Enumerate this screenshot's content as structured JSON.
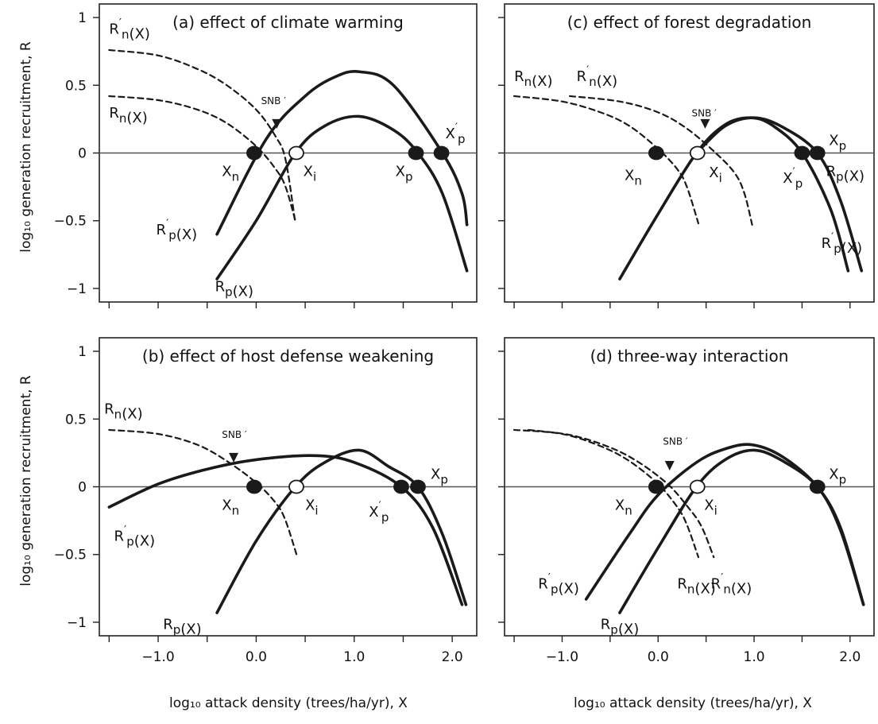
{
  "chart_data": {
    "type": "line",
    "xlabel": "log₁₀ attack density (trees/ha/yr), X",
    "ylabel": "log₁₀ generation recruitment, R",
    "x_ticks": [
      -1.0,
      0.0,
      1.0,
      2.0
    ],
    "x_tick_labels": [
      "−1.0",
      "0.0",
      "1.0",
      "2.0"
    ],
    "y_ticks": [
      1,
      0.5,
      0,
      -0.5,
      -1
    ],
    "y_tick_labels": [
      "1",
      "0.5",
      "0",
      "−0.5",
      "−1"
    ],
    "xlim": [
      -1.6,
      2.25
    ],
    "ylim": [
      -1.1,
      1.1
    ],
    "panels": [
      {
        "id": "a",
        "title": "(a) effect of climate warming",
        "series": [
          {
            "name": "R′n(X)",
            "style": "dashed",
            "points": [
              [
                -1.5,
                0.76
              ],
              [
                -1.0,
                0.72
              ],
              [
                -0.6,
                0.62
              ],
              [
                -0.3,
                0.5
              ],
              [
                0,
                0.32
              ],
              [
                0.2,
                0.12
              ],
              [
                0.3,
                -0.05
              ],
              [
                0.4,
                -0.52
              ]
            ]
          },
          {
            "name": "Rn(X)",
            "style": "dashed",
            "points": [
              [
                -1.5,
                0.42
              ],
              [
                -1.0,
                0.39
              ],
              [
                -0.6,
                0.32
              ],
              [
                -0.3,
                0.22
              ],
              [
                0,
                0.05
              ],
              [
                0.2,
                -0.12
              ],
              [
                0.3,
                -0.25
              ],
              [
                0.4,
                -0.5
              ]
            ]
          },
          {
            "name": "R′p(X)",
            "style": "solid",
            "points": [
              [
                -0.4,
                -0.6
              ],
              [
                0.1,
                0.1
              ],
              [
                0.5,
                0.42
              ],
              [
                0.8,
                0.56
              ],
              [
                1.05,
                0.6
              ],
              [
                1.4,
                0.5
              ],
              [
                1.9,
                0.0
              ],
              [
                2.1,
                -0.3
              ],
              [
                2.15,
                -0.53
              ]
            ]
          },
          {
            "name": "Rp(X)",
            "style": "solid",
            "points": [
              [
                -0.4,
                -0.93
              ],
              [
                0,
                -0.5
              ],
              [
                0.4,
                0.0
              ],
              [
                0.7,
                0.2
              ],
              [
                1.05,
                0.27
              ],
              [
                1.4,
                0.17
              ],
              [
                1.65,
                0.0
              ],
              [
                1.9,
                -0.3
              ],
              [
                2.15,
                -0.87
              ]
            ]
          }
        ],
        "labels": {
          "Rn_prime": "R′n(X)",
          "Rn": "Rn(X)",
          "Rp_prime": "R′p(X)",
          "Rp": "Rp(X)",
          "Xn": "Xn",
          "Xi": "Xi",
          "Xp": "Xp",
          "Xp_prime": "X′p",
          "snb": "SNB ′"
        },
        "points": [
          {
            "label": "Xn",
            "x": -0.02,
            "y": 0,
            "filled": true
          },
          {
            "label": "Xi",
            "x": 0.41,
            "y": 0,
            "filled": false
          },
          {
            "label": "Xp",
            "x": 1.63,
            "y": 0,
            "filled": true
          },
          {
            "label": "X′p",
            "x": 1.89,
            "y": 0,
            "filled": true
          }
        ],
        "snb_x": 0.21,
        "snb_y": 0.18
      },
      {
        "id": "c",
        "title": "(c) effect of forest degradation",
        "series": [
          {
            "name": "Rn(X)",
            "style": "dashed",
            "points": [
              [
                -1.5,
                0.42
              ],
              [
                -1.0,
                0.38
              ],
              [
                -0.6,
                0.3
              ],
              [
                -0.3,
                0.2
              ],
              [
                0,
                0.03
              ],
              [
                0.2,
                -0.12
              ],
              [
                0.3,
                -0.25
              ],
              [
                0.42,
                -0.52
              ]
            ]
          },
          {
            "name": "R′n(X)",
            "style": "dashed",
            "points": [
              [
                -0.92,
                0.42
              ],
              [
                -0.4,
                0.38
              ],
              [
                0,
                0.3
              ],
              [
                0.3,
                0.18
              ],
              [
                0.6,
                0.0
              ],
              [
                0.8,
                -0.15
              ],
              [
                0.9,
                -0.3
              ],
              [
                0.98,
                -0.53
              ]
            ]
          },
          {
            "name": "R′p(X)",
            "style": "solid",
            "points": [
              [
                -0.4,
                -0.93
              ],
              [
                0,
                -0.45
              ],
              [
                0.4,
                0.0
              ],
              [
                0.7,
                0.21
              ],
              [
                0.97,
                0.26
              ],
              [
                1.2,
                0.2
              ],
              [
                1.5,
                0.0
              ],
              [
                1.8,
                -0.42
              ],
              [
                1.98,
                -0.87
              ]
            ]
          },
          {
            "name": "Rp(X)",
            "style": "solid",
            "points": [
              [
                0.4,
                0.0
              ],
              [
                0.7,
                0.2
              ],
              [
                1.0,
                0.26
              ],
              [
                1.3,
                0.19
              ],
              [
                1.66,
                0.0
              ],
              [
                1.9,
                -0.35
              ],
              [
                2.12,
                -0.87
              ]
            ]
          }
        ],
        "labels": {
          "Rn": "Rn(X)",
          "Rn_prime": "R′n(X)",
          "Rp_prime": "R′p(X)",
          "Rp": "Rp(X)",
          "Xn": "Xn",
          "Xi": "Xi",
          "Xp": "Xp",
          "Xp_prime": "X′p",
          "snb": "SNB ′"
        },
        "points": [
          {
            "label": "Xn",
            "x": -0.02,
            "y": 0,
            "filled": true
          },
          {
            "label": "Xi",
            "x": 0.41,
            "y": 0,
            "filled": false
          },
          {
            "label": "X′p",
            "x": 1.5,
            "y": 0,
            "filled": true
          },
          {
            "label": "Xp",
            "x": 1.66,
            "y": 0,
            "filled": true
          }
        ],
        "snb_x": 0.49,
        "snb_y": 0.18
      },
      {
        "id": "b",
        "title": "(b) effect of host defense weakening",
        "series": [
          {
            "name": "Rn(X)",
            "style": "dashed",
            "points": [
              [
                -1.5,
                0.42
              ],
              [
                -1.0,
                0.39
              ],
              [
                -0.6,
                0.31
              ],
              [
                -0.3,
                0.19
              ],
              [
                0,
                0.03
              ],
              [
                0.2,
                -0.12
              ],
              [
                0.3,
                -0.25
              ],
              [
                0.42,
                -0.52
              ]
            ]
          },
          {
            "name": "R′p(X)",
            "style": "solid",
            "points": [
              [
                -1.5,
                -0.15
              ],
              [
                -1.0,
                0.02
              ],
              [
                -0.5,
                0.13
              ],
              [
                0,
                0.2
              ],
              [
                0.6,
                0.23
              ],
              [
                1.0,
                0.18
              ],
              [
                1.48,
                0.0
              ],
              [
                1.8,
                -0.3
              ],
              [
                2.1,
                -0.87
              ]
            ]
          },
          {
            "name": "Rp(X)",
            "style": "solid",
            "points": [
              [
                -0.4,
                -0.93
              ],
              [
                0,
                -0.4
              ],
              [
                0.4,
                0.0
              ],
              [
                0.7,
                0.18
              ],
              [
                1.05,
                0.27
              ],
              [
                1.35,
                0.15
              ],
              [
                1.65,
                0.0
              ],
              [
                1.9,
                -0.35
              ],
              [
                2.14,
                -0.87
              ]
            ]
          }
        ],
        "labels": {
          "Rn": "Rn(X)",
          "Rp_prime": "R′p(X)",
          "Rp": "Rp(X)",
          "Xn": "Xn",
          "Xi": "Xi",
          "Xp": "Xp",
          "Xp_prime": "X′p",
          "snb": "SNB ′"
        },
        "points": [
          {
            "label": "Xn",
            "x": -0.02,
            "y": 0,
            "filled": true
          },
          {
            "label": "Xi",
            "x": 0.41,
            "y": 0,
            "filled": false
          },
          {
            "label": "X′p",
            "x": 1.48,
            "y": 0,
            "filled": true
          },
          {
            "label": "Xp",
            "x": 1.65,
            "y": 0,
            "filled": true
          }
        ],
        "snb_x": -0.23,
        "snb_y": 0.18
      },
      {
        "id": "d",
        "title": "(d) three-way interaction",
        "series": [
          {
            "name": "Rn(X)",
            "style": "dashed",
            "points": [
              [
                -1.5,
                0.42
              ],
              [
                -1.0,
                0.39
              ],
              [
                -0.6,
                0.3
              ],
              [
                -0.3,
                0.19
              ],
              [
                0,
                0.02
              ],
              [
                0.2,
                -0.15
              ],
              [
                0.3,
                -0.28
              ],
              [
                0.42,
                -0.52
              ]
            ]
          },
          {
            "name": "R′n(X)",
            "style": "dashed",
            "points": [
              [
                -1.35,
                0.42
              ],
              [
                -0.9,
                0.38
              ],
              [
                -0.5,
                0.29
              ],
              [
                -0.2,
                0.18
              ],
              [
                0.1,
                0.02
              ],
              [
                0.3,
                -0.14
              ],
              [
                0.45,
                -0.29
              ],
              [
                0.58,
                -0.52
              ]
            ]
          },
          {
            "name": "R′p(X)",
            "style": "solid",
            "points": [
              [
                -0.75,
                -0.83
              ],
              [
                -0.3,
                -0.35
              ],
              [
                0,
                -0.06
              ],
              [
                0.4,
                0.18
              ],
              [
                0.7,
                0.28
              ],
              [
                0.98,
                0.31
              ],
              [
                1.3,
                0.22
              ],
              [
                1.66,
                0.0
              ],
              [
                1.9,
                -0.3
              ],
              [
                2.14,
                -0.87
              ]
            ]
          },
          {
            "name": "Rp(X)",
            "style": "solid",
            "points": [
              [
                -0.4,
                -0.93
              ],
              [
                0,
                -0.45
              ],
              [
                0.4,
                0.0
              ],
              [
                0.7,
                0.2
              ],
              [
                1.0,
                0.27
              ],
              [
                1.3,
                0.19
              ],
              [
                1.66,
                0.0
              ],
              [
                1.9,
                -0.32
              ],
              [
                2.14,
                -0.87
              ]
            ]
          }
        ],
        "labels": {
          "Rn": "Rn(X)",
          "Rn_prime": "R′n(X)",
          "Rp_prime": "R′p(X)",
          "Rp": "Rp(X)",
          "Xn": "Xn",
          "Xi": "Xi",
          "Xp": "Xp",
          "snb": "SNB ′"
        },
        "points": [
          {
            "label": "Xn",
            "x": -0.02,
            "y": 0,
            "filled": true
          },
          {
            "label": "Xi",
            "x": 0.41,
            "y": 0,
            "filled": false
          },
          {
            "label": "Xp",
            "x": 1.66,
            "y": 0,
            "filled": true
          }
        ],
        "snb_x": 0.12,
        "snb_y": 0.12
      }
    ]
  }
}
